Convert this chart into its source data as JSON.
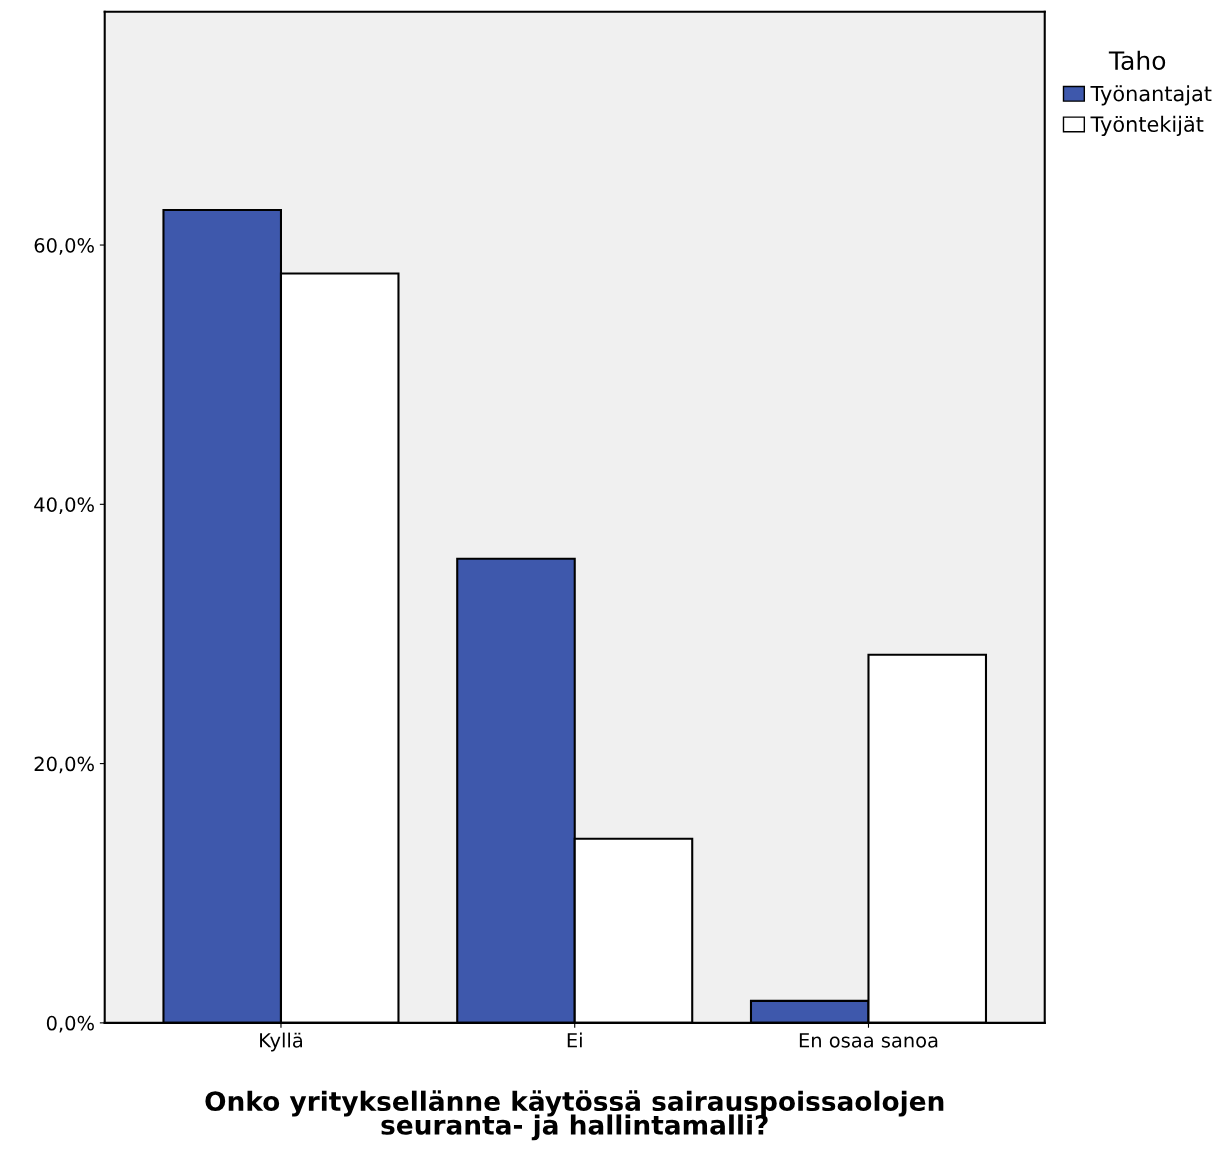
{
  "chart_data": {
    "type": "bar",
    "xlabel": "Onko yrityksellänne käytössä sairauspoissaolojen\nseuranta- ja hallintamalli?",
    "legend_title": "Taho",
    "categories": [
      "Kyllä",
      "Ei",
      "En osaa sanoa"
    ],
    "series": [
      {
        "name": "Työnantajat",
        "color": "#3e58ac",
        "values": [
          62.7,
          35.8,
          1.7
        ]
      },
      {
        "name": "Työntekijät",
        "color": "#ffffff",
        "values": [
          57.8,
          14.2,
          28.4
        ]
      }
    ],
    "ylim": [
      0,
      78
    ],
    "yticks": [
      {
        "value": 0,
        "label": "0,0%"
      },
      {
        "value": 20,
        "label": "20,0%"
      },
      {
        "value": 40,
        "label": "40,0%"
      },
      {
        "value": 60,
        "label": "60,0%"
      }
    ],
    "grid": false,
    "legend": "top right"
  }
}
